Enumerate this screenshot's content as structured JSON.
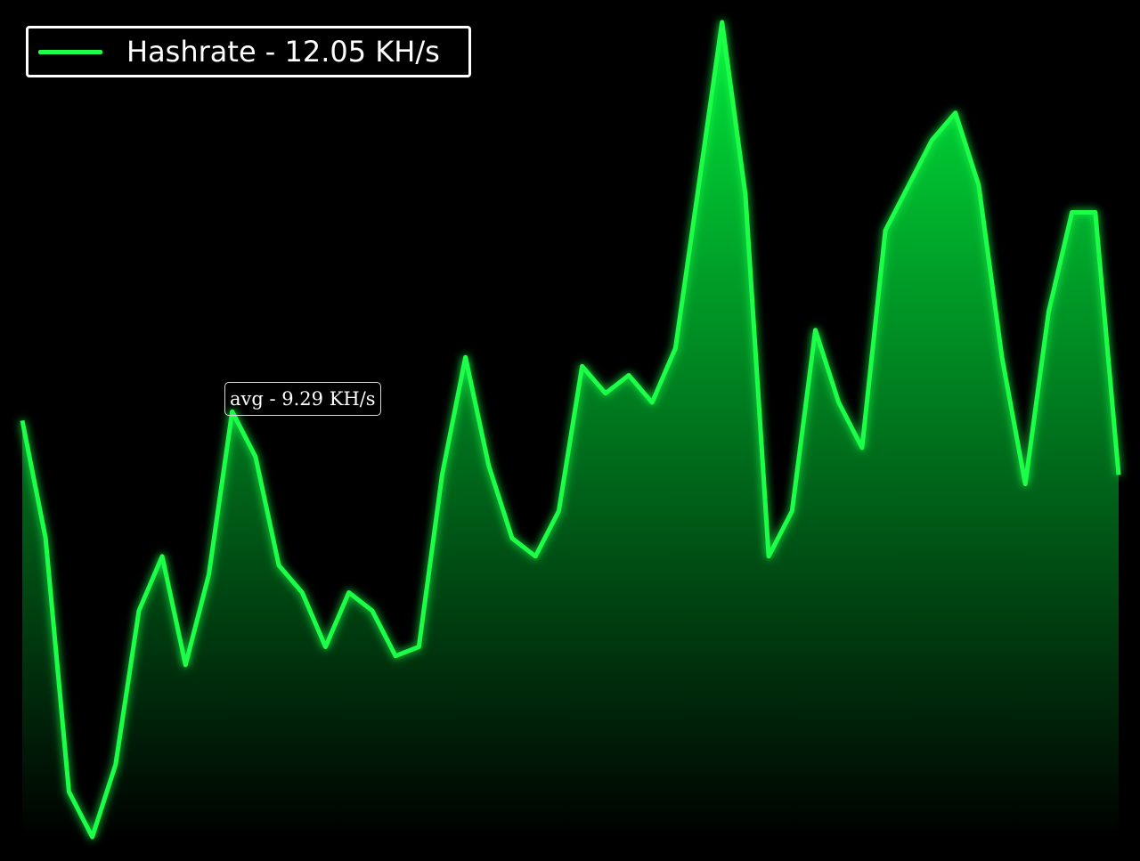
{
  "colors": {
    "background": "#000000",
    "line": "#1eff4a",
    "fill_top": "#00e63a",
    "fill_bottom": "#000000",
    "legend_border": "#ffffff",
    "text": "#ffffff"
  },
  "legend": {
    "label": "Hashrate - 12.05 KH/s",
    "placement": "top-left"
  },
  "tooltip": {
    "label": "avg - 9.29 KH/s"
  },
  "chart_data": {
    "type": "area",
    "title": "",
    "xlabel": "",
    "ylabel": "",
    "grid": false,
    "axes_visible": false,
    "ylim": [
      5.1,
      14.1
    ],
    "series": [
      {
        "name": "Hashrate - 12.05 KH/s",
        "values": [
          9.7,
          8.4,
          5.6,
          5.1,
          5.9,
          7.6,
          8.2,
          7.0,
          8.0,
          9.8,
          9.3,
          8.1,
          7.8,
          7.2,
          7.8,
          7.6,
          7.1,
          7.2,
          9.1,
          10.4,
          9.2,
          8.4,
          8.2,
          8.7,
          10.3,
          10.0,
          10.2,
          9.9,
          10.5,
          12.3,
          14.1,
          12.2,
          8.2,
          8.7,
          10.7,
          9.9,
          9.4,
          11.8,
          12.3,
          12.8,
          13.1,
          12.3,
          10.4,
          9.0,
          10.9,
          12.0,
          12.0,
          9.1
        ]
      }
    ]
  }
}
